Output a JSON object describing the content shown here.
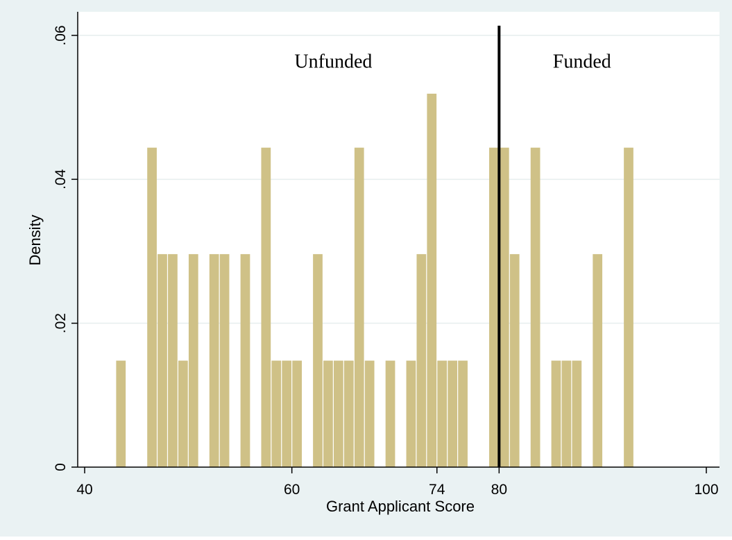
{
  "chart_data": {
    "type": "bar",
    "subtype": "histogram",
    "xlabel": "Grant Applicant Score",
    "ylabel": "Density",
    "xlim": [
      40,
      100
    ],
    "ylim": [
      0,
      0.06
    ],
    "x_ticks": [
      40,
      60,
      74,
      80,
      100
    ],
    "y_ticks": [
      0,
      0.02,
      0.04,
      0.06
    ],
    "y_tick_labels": [
      "0",
      ".02",
      ".04",
      ".06"
    ],
    "grid": "horizontal",
    "bin_width": 1,
    "bin_starts": [
      43,
      46,
      47,
      48,
      49,
      50,
      52,
      53,
      55,
      57,
      58,
      59,
      60,
      62,
      63,
      64,
      65,
      66,
      67,
      69,
      71,
      72,
      73,
      74,
      75,
      76,
      79,
      80,
      81,
      83,
      85,
      86,
      87,
      89,
      92
    ],
    "values": [
      0.0148,
      0.0444,
      0.0296,
      0.0296,
      0.0148,
      0.0296,
      0.0296,
      0.0296,
      0.0296,
      0.0444,
      0.0148,
      0.0148,
      0.0148,
      0.0296,
      0.0148,
      0.0148,
      0.0148,
      0.0444,
      0.0148,
      0.0148,
      0.0148,
      0.0296,
      0.0519,
      0.0148,
      0.0148,
      0.0148,
      0.0444,
      0.0444,
      0.0296,
      0.0444,
      0.0148,
      0.0148,
      0.0148,
      0.0296,
      0.0444
    ],
    "bar_color": "#cfc187",
    "cutoff": 80,
    "annotations": [
      {
        "text": "Unfunded",
        "x": 64,
        "y": 0.0555
      },
      {
        "text": "Funded",
        "x": 88,
        "y": 0.0555
      }
    ]
  },
  "colors": {
    "outer_background": "#eaf2f3",
    "plot_background": "#ffffff",
    "grid": "#e6eeee",
    "cutoff_line": "#000000"
  }
}
